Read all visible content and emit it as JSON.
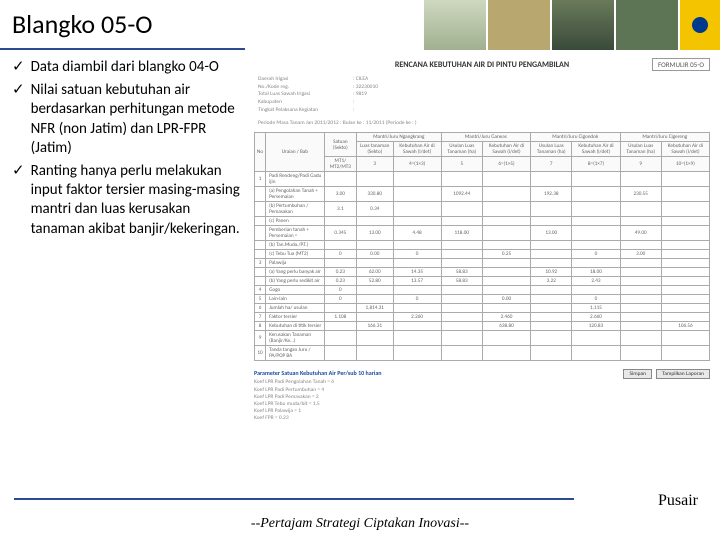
{
  "title": "Blangko 05-O",
  "bullets": [
    "Data diambil dari blangko 04-O",
    "Nilai satuan kebutuhan air berdasarkan perhitungan metode NFR (non Jatim) dan LPR-FPR (Jatim)",
    "Ranting hanya perlu melakukan input faktor tersier masing-masing mantri dan luas kerusakan tanaman akibat banjir/kekeringan."
  ],
  "form": {
    "id": "FORMULIR 05-O",
    "title": "RENCANA KEBUTUHAN AIR DI PINTU PENGAMBILAN",
    "meta": [
      {
        "k": "Daerah Irigasi",
        "v": ": CILEA"
      },
      {
        "k": "No./Kode reg.",
        "v": ": 32230010"
      },
      {
        "k": "Total Luas Sawah Irigasi",
        "v": ": 9819"
      },
      {
        "k": "Kabupaten",
        "v": ":"
      },
      {
        "k": "Tingkat Pelaksana Kegiatan",
        "v": ":"
      }
    ],
    "period": "Periode Masa Tanam Jan 2011/2012 :   Bulan ke : 11/2011 (Periode ke :   )",
    "headers": {
      "col1": "No",
      "col2": "Uraian / Bab",
      "col3": "Satuan (Sekto)",
      "g1": {
        "t": "Mantri/Juru Ngangkrang",
        "s1": "Luas tanaman (Sekto)",
        "s2": "Kebutuhan Air di Sawah (l/det)"
      },
      "g2": {
        "t": "Mantri/Juru Ganeas",
        "s1": "Usulan Luas Tanaman (ha)",
        "s2": "Kebutuhan Air di Sawah (l/det)"
      },
      "g3": {
        "t": "Mantri/Juru Cigondok",
        "s1": "Usulan Luas Tanaman (ha)",
        "s2": "Kebutuhan Air di Sawah (l/det)"
      },
      "g4": {
        "t": "Mantri/Juru Cigereng",
        "s1": "Usulan Luas Tanaman (ha)",
        "s2": "Kebutuhan Air di Sawah (l/det)"
      },
      "unum": [
        "1",
        "2",
        "3",
        "4=(1×3)",
        "5",
        "6=(1×5)",
        "7",
        "8=(1×7)",
        "9",
        "10=(1×9)"
      ],
      "unit": "MT1/ MT2/MT3"
    },
    "rows": [
      {
        "no": "1",
        "label": "Padi Rendeng/Padi Gadu ijin",
        "u": "",
        "c": [
          "",
          "",
          "",
          "",
          "",
          "",
          "",
          ""
        ]
      },
      {
        "no": "",
        "label": "(a) Pengolahan Tanah + Persemaian",
        "u": "3.00",
        "c": [
          "330.80",
          "",
          "1092.44",
          "",
          "192.38",
          "",
          "230.55",
          ""
        ]
      },
      {
        "no": "",
        "label": "(b) Pertumbuhan / Pemasakan",
        "u": "3.1",
        "c": [
          "0.34",
          "",
          "",
          "",
          "",
          "",
          "",
          ""
        ]
      },
      {
        "no": "",
        "label": "(c) Panen",
        "u": "",
        "c": [
          "",
          "",
          "",
          "",
          "",
          "",
          "",
          ""
        ]
      },
      {
        "no": "",
        "label": "Pemberian tanah + Persemaian =",
        "u": "0.345",
        "c": [
          "13.00",
          "4.48",
          "118.00",
          "",
          "13.00",
          "",
          "49.00",
          ""
        ]
      },
      {
        "no": "",
        "label": "(b) Tan.Muda./P.T.)",
        "u": "",
        "c": [
          "",
          "",
          "",
          "",
          "",
          "",
          "",
          ""
        ]
      },
      {
        "no": "",
        "label": "(c) Tebu Tua (MT2)",
        "u": "0",
        "c": [
          "0.00",
          "0",
          "",
          "0.25",
          "",
          "0",
          "3.00",
          ""
        ]
      },
      {
        "no": "3",
        "label": "Palawija",
        "u": "",
        "c": [
          "",
          "",
          "",
          "",
          "",
          "",
          "",
          ""
        ]
      },
      {
        "no": "",
        "label": "(a) Yang perlu banyak air",
        "u": "0.23",
        "c": [
          "62.00",
          "14.35",
          "58.83",
          "",
          "10.92",
          "18.00",
          "",
          ""
        ]
      },
      {
        "no": "",
        "label": "(b) Yang perlu sedikit air",
        "u": "0.23",
        "c": [
          "52.80",
          "13.57",
          "58.83",
          "",
          "3.22",
          "2.43",
          "",
          ""
        ]
      },
      {
        "no": "4",
        "label": "Gogo",
        "u": "0",
        "c": [
          "",
          "",
          "",
          "",
          "",
          "",
          "",
          ""
        ]
      },
      {
        "no": "5",
        "label": "Lain-lain",
        "u": "0",
        "c": [
          "",
          "0",
          "",
          "0.00",
          "",
          "0",
          "",
          ""
        ]
      },
      {
        "no": "6",
        "label": "Jumlah ha/ usulan",
        "u": "",
        "c": [
          "1,814.31",
          "",
          "",
          "",
          "",
          "1,115",
          "",
          ""
        ]
      },
      {
        "no": "7",
        "label": "Faktor tersier",
        "u": "1.108",
        "c": [
          "",
          "2.260",
          "",
          "2.460",
          "",
          "2.660",
          "",
          ""
        ]
      },
      {
        "no": "8",
        "label": "Kebutuhan di titik tersier",
        "u": "",
        "c": [
          "166.31",
          "",
          "",
          "638.80",
          "",
          "120.83",
          "",
          "106.56"
        ]
      },
      {
        "no": "9",
        "label": "Kerusakan Tanaman (Banjir/Ke…)",
        "u": "",
        "c": [
          "",
          "",
          "",
          "",
          "",
          "",
          "",
          ""
        ]
      },
      {
        "no": "10",
        "label": "Tanda tangan Juru / PA/POP BA",
        "u": "",
        "c": [
          "",
          "",
          "",
          "",
          "",
          "",
          "",
          ""
        ]
      }
    ],
    "param": {
      "title": "Parameter Satuan Kebutuhan Air Per/sub 10 harian",
      "lines": [
        "Koef LPR Padi Pengolahan Tanah = 6",
        "Koef LPR Padi Pertumbuhan = 4",
        "Koef LPR Padi Pemasakan = 2",
        "Koef LPR Tebu muda/bit = 1.5",
        "Koef LPR Palawija = 1",
        "Koef FPR = 0.23"
      ],
      "btn1": "Simpan",
      "btn2": "Tampilkan Laporan"
    }
  },
  "pusair": "Pusair",
  "tagline": "--Pertajam Strategi Ciptakan Inovasi--"
}
